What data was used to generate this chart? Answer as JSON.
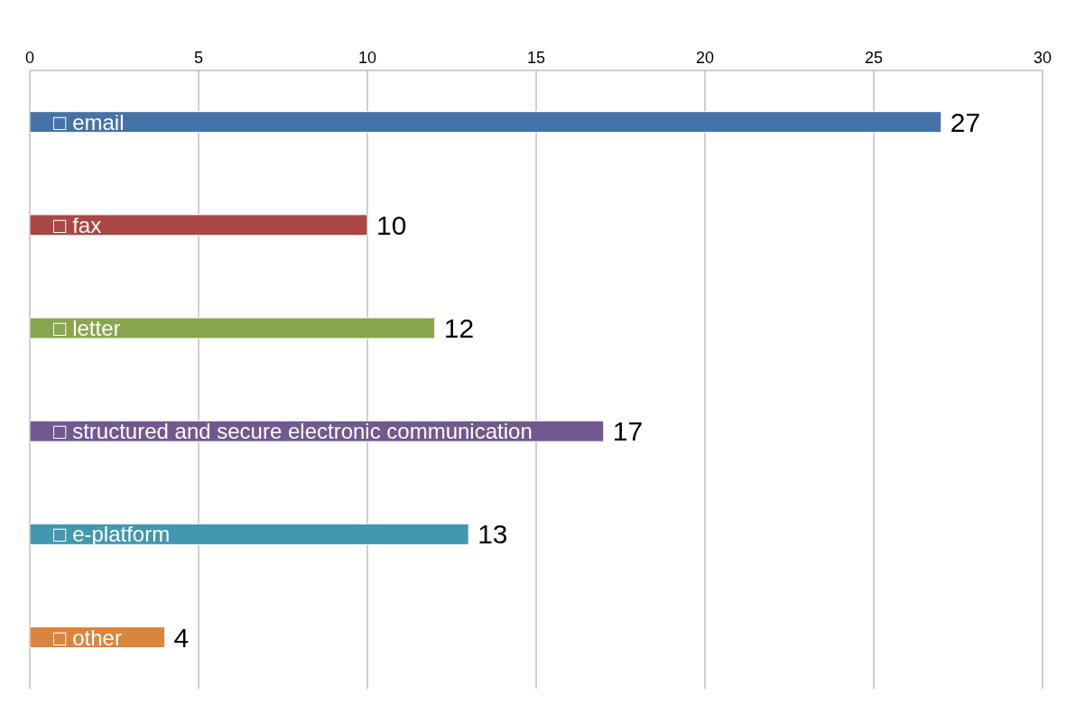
{
  "chart_data": {
    "type": "bar",
    "orientation": "horizontal",
    "categories": [
      "□ email",
      "□ fax",
      "□ letter",
      "□ structured and secure electronic communication",
      "□ e-platform",
      "□ other"
    ],
    "values": [
      27,
      10,
      12,
      17,
      13,
      4
    ],
    "colors": [
      "#4572a7",
      "#aa4643",
      "#89a54e",
      "#71588f",
      "#4198af",
      "#db843d"
    ],
    "xlim": [
      0,
      30
    ],
    "xticks": [
      0,
      5,
      10,
      15,
      20,
      25,
      30
    ],
    "grid": "x",
    "data_labels": true,
    "legend": false
  }
}
